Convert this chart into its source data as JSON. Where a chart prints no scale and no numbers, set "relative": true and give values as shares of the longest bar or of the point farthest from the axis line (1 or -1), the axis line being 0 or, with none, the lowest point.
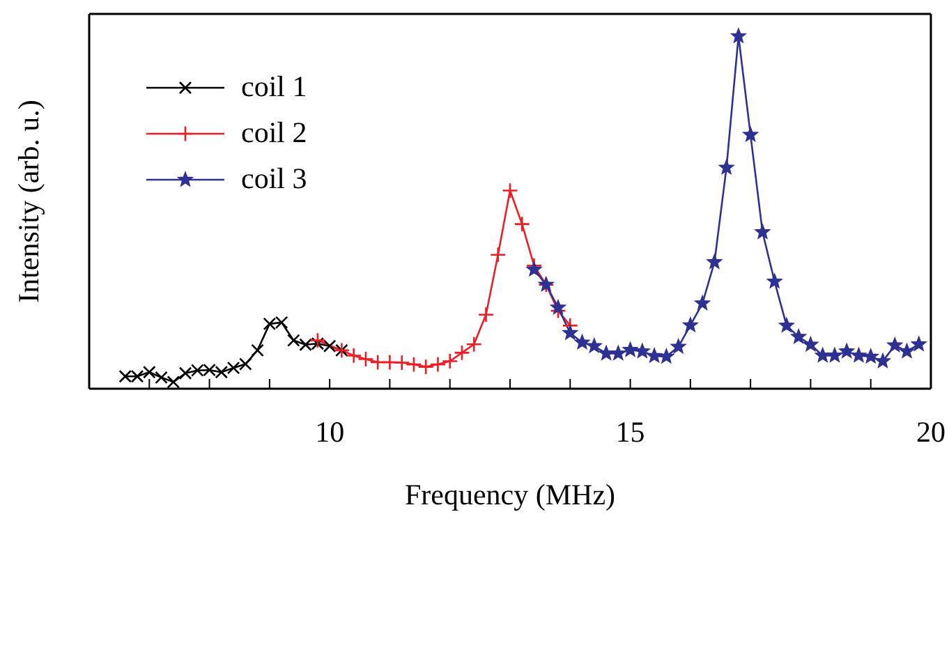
{
  "chart_data": {
    "type": "line",
    "relative": true,
    "xlabel": "Frequency (MHz)",
    "ylabel": "Intensity (arb. u.)",
    "xlim": [
      6,
      20
    ],
    "xticks": [
      {
        "value": 7,
        "label": null
      },
      {
        "value": 8,
        "label": null
      },
      {
        "value": 9,
        "label": null
      },
      10,
      {
        "value": 11,
        "label": null
      },
      {
        "value": 12,
        "label": null
      },
      {
        "value": 13,
        "label": null
      },
      {
        "value": 14,
        "label": null
      },
      15,
      {
        "value": 16,
        "label": null
      },
      {
        "value": 17,
        "label": null
      },
      {
        "value": 18,
        "label": null
      },
      {
        "value": 19,
        "label": null
      },
      20
    ],
    "legend": "top left",
    "line_style": "solid",
    "series": [
      {
        "name": "coil 1",
        "color": "#000000",
        "marker": "cross",
        "x": [
          6.6,
          6.8,
          7.0,
          7.2,
          7.4,
          7.6,
          7.8,
          8.0,
          8.2,
          8.4,
          8.6,
          8.8,
          9.0,
          9.2,
          9.4,
          9.6,
          9.8,
          10.0,
          10.2
        ],
        "values": [
          0.035,
          0.035,
          0.047,
          0.032,
          0.019,
          0.044,
          0.052,
          0.053,
          0.047,
          0.059,
          0.07,
          0.109,
          0.184,
          0.188,
          0.137,
          0.125,
          0.128,
          0.121,
          0.109
        ]
      },
      {
        "name": "coil 2",
        "color": "#ee1c24",
        "marker": "plus",
        "x": [
          9.8,
          10.2,
          10.4,
          10.6,
          10.8,
          11.0,
          11.2,
          11.4,
          11.6,
          11.8,
          12.0,
          12.2,
          12.4,
          12.6,
          12.8,
          13.0,
          13.2,
          13.4,
          13.6,
          13.8,
          14.0
        ],
        "values": [
          0.137,
          0.109,
          0.094,
          0.084,
          0.075,
          0.075,
          0.074,
          0.069,
          0.062,
          0.069,
          0.078,
          0.102,
          0.126,
          0.21,
          0.38,
          0.562,
          0.467,
          0.349,
          0.295,
          0.221,
          0.179
        ]
      },
      {
        "name": "coil 3",
        "color": "#2e3192",
        "marker": "star",
        "x": [
          13.4,
          13.6,
          13.8,
          14.0,
          14.2,
          14.4,
          14.6,
          14.8,
          15.0,
          15.2,
          15.4,
          15.6,
          15.8,
          16.0,
          16.2,
          16.4,
          16.6,
          16.8,
          17.0,
          17.2,
          17.4,
          17.6,
          17.8,
          18.0,
          18.2,
          18.4,
          18.6,
          18.8,
          19.0,
          19.2,
          19.4,
          19.6,
          19.8
        ],
        "values": [
          0.338,
          0.295,
          0.23,
          0.158,
          0.131,
          0.121,
          0.1,
          0.1,
          0.11,
          0.106,
          0.093,
          0.091,
          0.119,
          0.18,
          0.242,
          0.359,
          0.627,
          1.0,
          0.72,
          0.444,
          0.304,
          0.179,
          0.147,
          0.125,
          0.094,
          0.094,
          0.106,
          0.094,
          0.091,
          0.078,
          0.123,
          0.106,
          0.126
        ]
      }
    ]
  }
}
